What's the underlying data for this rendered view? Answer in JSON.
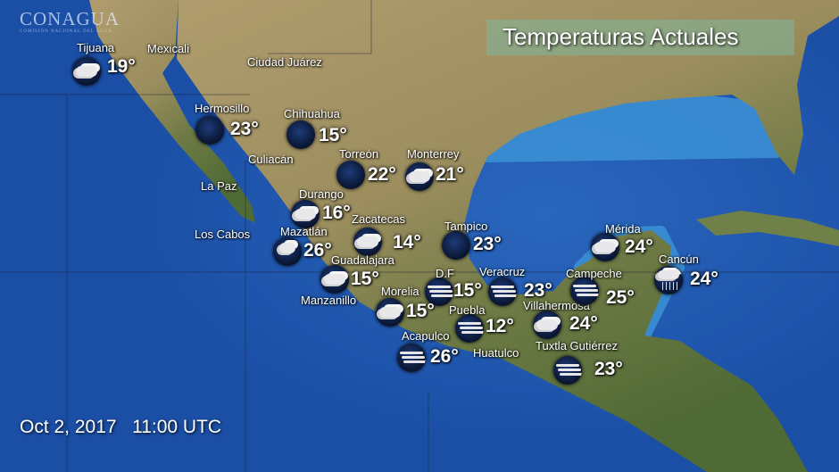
{
  "logo": {
    "name": "CONAGUA",
    "subtitle": "COMISIÓN NACIONAL DEL AGUA"
  },
  "title": "Temperaturas Actuales",
  "timestamp": "Oct 2, 2017   11:00 UTC",
  "colors": {
    "ocean": "#1b4fa6",
    "shallow_water": "#3a8fd2",
    "land_north": "#a8976a",
    "land_south": "#5f7a3e",
    "text": "#ffffff"
  },
  "place_labels": [
    "Mexicali",
    "Ciudad Juárez",
    "Culiacán",
    "La Paz",
    "Los Cabos",
    "Manzanillo",
    "Huatulco"
  ],
  "cities": [
    {
      "name": "Tijuana",
      "temp": "19°",
      "icon": "cloudy-night-icon"
    },
    {
      "name": "Hermosillo",
      "temp": "23°",
      "icon": "clear-night-icon"
    },
    {
      "name": "Chihuahua",
      "temp": "15°",
      "icon": "clear-night-icon"
    },
    {
      "name": "Torreón",
      "temp": "22°",
      "icon": "clear-night-icon"
    },
    {
      "name": "Monterrey",
      "temp": "21°",
      "icon": "cloudy-night-icon"
    },
    {
      "name": "Durango",
      "temp": "16°",
      "icon": "cloudy-night-icon"
    },
    {
      "name": "Zacatecas",
      "temp": "14°",
      "icon": "cloudy-night-icon"
    },
    {
      "name": "Mazatlán",
      "temp": "26°",
      "icon": "partly-cloudy-night-icon"
    },
    {
      "name": "Tampico",
      "temp": "23°",
      "icon": "clear-night-icon"
    },
    {
      "name": "Guadalajara",
      "temp": "15°",
      "icon": "cloudy-night-icon"
    },
    {
      "name": "D.F",
      "temp": "15°",
      "icon": "fog-icon"
    },
    {
      "name": "Veracruz",
      "temp": "23°",
      "icon": "fog-icon"
    },
    {
      "name": "Morelia",
      "temp": "15°",
      "icon": "cloudy-night-icon"
    },
    {
      "name": "Puebla",
      "temp": "12°",
      "icon": "fog-icon"
    },
    {
      "name": "Villahermosa",
      "temp": "24°",
      "icon": "cloudy-night-icon"
    },
    {
      "name": "Acapulco",
      "temp": "26°",
      "icon": "fog-icon"
    },
    {
      "name": "Tuxtla Gutiérrez",
      "temp": "23°",
      "icon": "fog-icon"
    },
    {
      "name": "Mérida",
      "temp": "24°",
      "icon": "cloudy-night-icon"
    },
    {
      "name": "Campeche",
      "temp": "25°",
      "icon": "fog-icon"
    },
    {
      "name": "Cancún",
      "temp": "24°",
      "icon": "rain-icon"
    }
  ]
}
